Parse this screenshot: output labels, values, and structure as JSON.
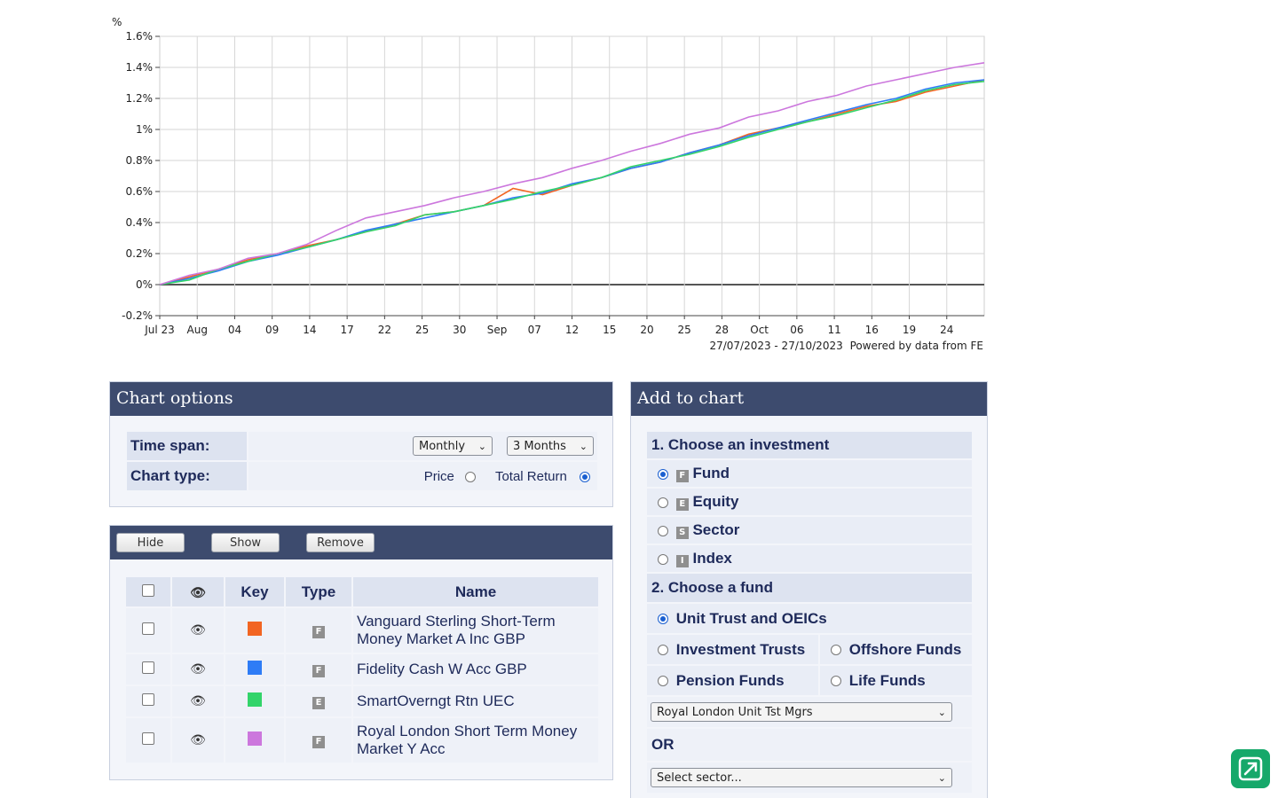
{
  "chart_data": {
    "type": "line",
    "y_unit_label": "%",
    "y_ticks": [
      "1.6%",
      "1.4%",
      "1.2%",
      "1%",
      "0.8%",
      "0.6%",
      "0.4%",
      "0.2%",
      "0%",
      "-0.2%"
    ],
    "ylim": [
      -0.2,
      1.6
    ],
    "x_ticks": [
      "Jul 23",
      "Aug",
      "04",
      "09",
      "14",
      "17",
      "22",
      "25",
      "30",
      "Sep",
      "07",
      "12",
      "15",
      "20",
      "25",
      "28",
      "Oct",
      "06",
      "11",
      "16",
      "19",
      "24"
    ],
    "date_range": "27/07/2023 - 27/10/2023",
    "credit": "Powered by data from FE",
    "grid": true,
    "series": [
      {
        "name": "Vanguard Sterling Short-Term Money Market A Inc GBP",
        "color": "#f26522",
        "values": [
          0,
          0.05,
          0.1,
          0.16,
          0.2,
          0.25,
          0.29,
          0.34,
          0.39,
          0.45,
          0.47,
          0.51,
          0.62,
          0.58,
          0.64,
          0.69,
          0.75,
          0.79,
          0.85,
          0.9,
          0.97,
          1.01,
          1.05,
          1.1,
          1.15,
          1.18,
          1.24,
          1.28,
          1.32
        ]
      },
      {
        "name": "Fidelity Cash W Acc GBP",
        "color": "#2e7cf6",
        "values": [
          0,
          0.04,
          0.09,
          0.15,
          0.19,
          0.24,
          0.29,
          0.35,
          0.39,
          0.43,
          0.47,
          0.51,
          0.56,
          0.59,
          0.65,
          0.69,
          0.75,
          0.79,
          0.85,
          0.9,
          0.96,
          1.01,
          1.06,
          1.11,
          1.16,
          1.2,
          1.26,
          1.3,
          1.32
        ]
      },
      {
        "name": "SmartOverngt Rtn UEC",
        "color": "#33d46a",
        "values": [
          0,
          0.03,
          0.1,
          0.15,
          0.2,
          0.24,
          0.29,
          0.34,
          0.38,
          0.45,
          0.47,
          0.51,
          0.55,
          0.6,
          0.64,
          0.69,
          0.76,
          0.8,
          0.84,
          0.89,
          0.95,
          1.0,
          1.05,
          1.09,
          1.14,
          1.19,
          1.25,
          1.29,
          1.31
        ]
      },
      {
        "name": "Royal London Short Term Money Market Y Acc",
        "color": "#cc77dd",
        "values": [
          0,
          0.06,
          0.1,
          0.17,
          0.2,
          0.26,
          0.35,
          0.43,
          0.47,
          0.51,
          0.56,
          0.6,
          0.65,
          0.69,
          0.75,
          0.8,
          0.86,
          0.91,
          0.97,
          1.01,
          1.08,
          1.12,
          1.18,
          1.22,
          1.28,
          1.32,
          1.36,
          1.4,
          1.43
        ]
      }
    ]
  },
  "chart_options": {
    "title": "Chart options",
    "time_span_label": "Time span:",
    "frequency": "Monthly",
    "period": "3 Months",
    "chart_type_label": "Chart type:",
    "price_label": "Price",
    "total_return_label": "Total Return",
    "selected_type": "total_return"
  },
  "fund_list": {
    "buttons": {
      "hide": "Hide",
      "show": "Show",
      "remove": "Remove"
    },
    "headers": {
      "key": "Key",
      "type": "Type",
      "name": "Name"
    },
    "eye_icon": "👁",
    "rows": [
      {
        "color": "#f26522",
        "type": "F",
        "name": "Vanguard Sterling Short-Term Money Market A Inc GBP"
      },
      {
        "color": "#2e7cf6",
        "type": "F",
        "name": "Fidelity Cash W Acc GBP"
      },
      {
        "color": "#33d46a",
        "type": "E",
        "name": "SmartOverngt Rtn UEC"
      },
      {
        "color": "#cc77dd",
        "type": "F",
        "name": "Royal London Short Term Money Market Y Acc"
      }
    ]
  },
  "add_to_chart": {
    "title": "Add to chart",
    "step1": "1. Choose an investment",
    "investment_types": [
      {
        "badge": "F",
        "label": "Fund",
        "selected": true
      },
      {
        "badge": "E",
        "label": "Equity",
        "selected": false
      },
      {
        "badge": "S",
        "label": "Sector",
        "selected": false
      },
      {
        "badge": "I",
        "label": "Index",
        "selected": false
      }
    ],
    "step2": "2. Choose a fund",
    "unit_trust": "Unit Trust and OEICs",
    "investment_trusts": "Investment Trusts",
    "offshore_funds": "Offshore Funds",
    "pension_funds": "Pension Funds",
    "life_funds": "Life Funds",
    "manager_select": "Royal London Unit Tst Mgrs",
    "or_label": "OR",
    "sector_select": "Select sector..."
  }
}
